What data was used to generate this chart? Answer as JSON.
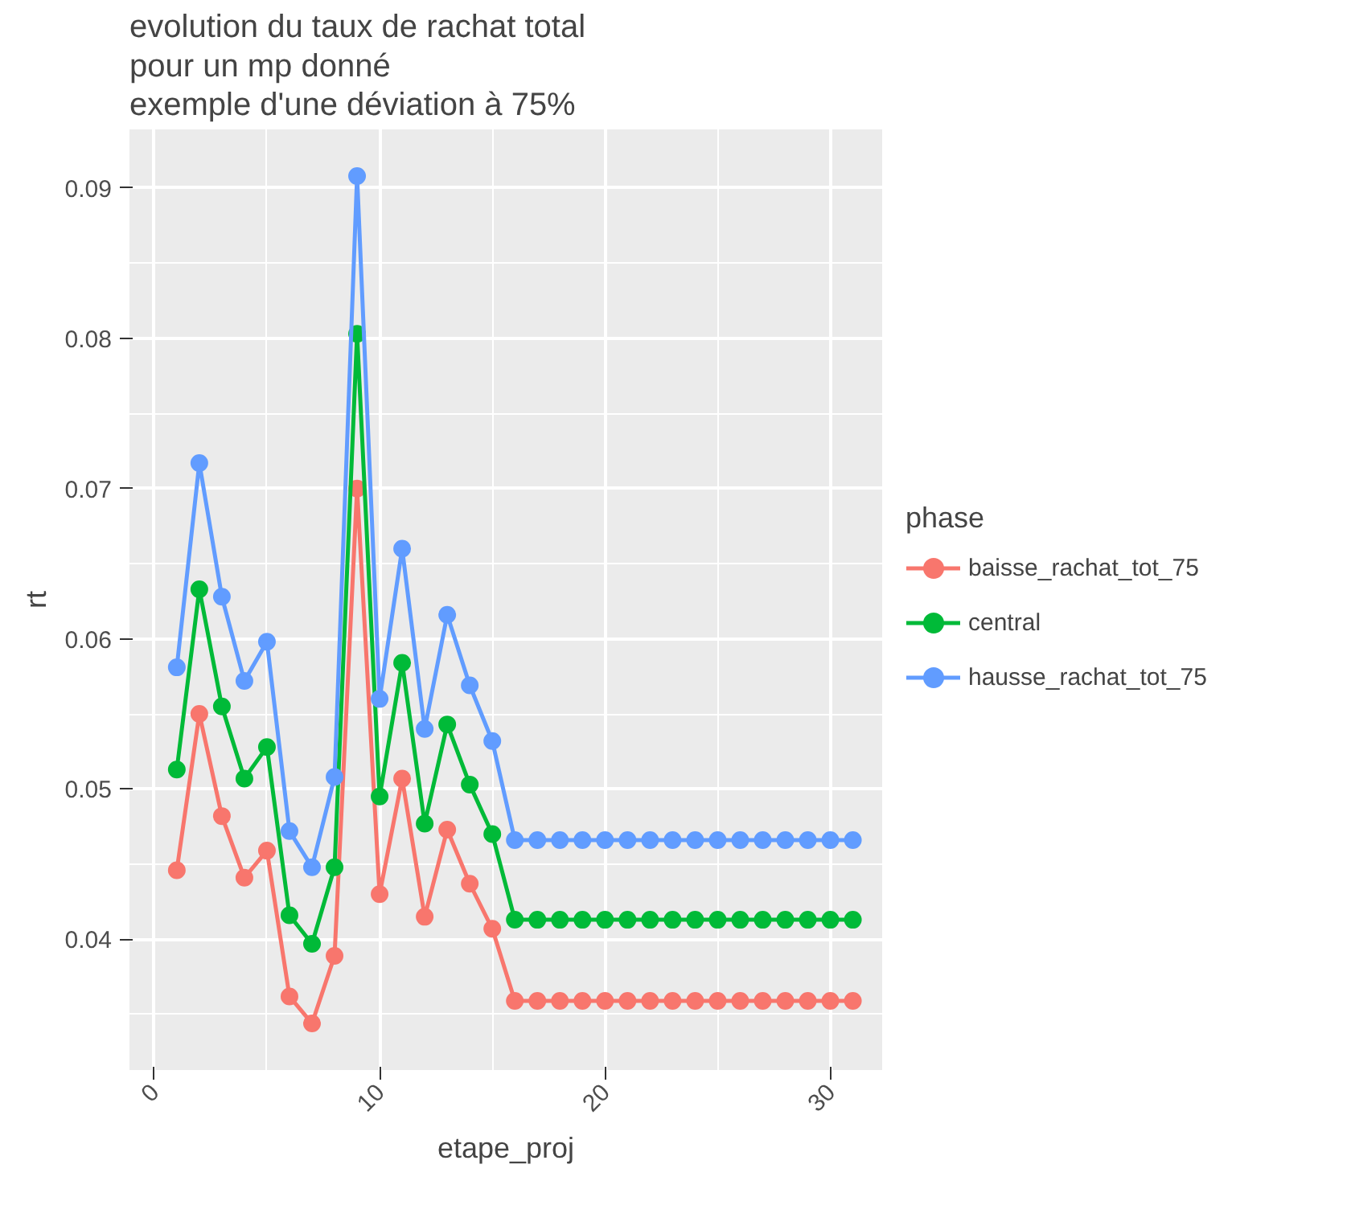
{
  "chart_data": {
    "type": "line",
    "title": "evolution du taux de rachat total\n pour un mp donné\n exemple d'une déviation à 75%",
    "xlabel": "etape_proj",
    "ylabel": "rt",
    "legend_title": "phase",
    "legend": "right",
    "grid": true,
    "marker": "circle",
    "line_style": "solid",
    "x": [
      1,
      2,
      3,
      4,
      5,
      6,
      7,
      8,
      9,
      10,
      11,
      12,
      13,
      14,
      15,
      16,
      17,
      18,
      19,
      20,
      21,
      22,
      23,
      24,
      25,
      26,
      27,
      28,
      29,
      30,
      31
    ],
    "xlim": [
      -1.1,
      32.3
    ],
    "ylim": [
      0.0313,
      0.0939
    ],
    "xticks": [
      0,
      10,
      20,
      30
    ],
    "yticks": [
      0.04,
      0.05,
      0.06,
      0.07,
      0.08,
      0.09
    ],
    "series": [
      {
        "name": "baisse_rachat_tot_75",
        "color": "#f8766d",
        "values": [
          0.0446,
          0.055,
          0.0482,
          0.0441,
          0.0459,
          0.0362,
          0.0344,
          0.0389,
          0.07,
          0.043,
          0.0507,
          0.0415,
          0.0473,
          0.0437,
          0.0407,
          0.0359,
          0.0359,
          0.0359,
          0.0359,
          0.0359,
          0.0359,
          0.0359,
          0.0359,
          0.0359,
          0.0359,
          0.0359,
          0.0359,
          0.0359,
          0.0359,
          0.0359,
          0.0359
        ]
      },
      {
        "name": "central",
        "color": "#00ba38",
        "values": [
          0.0513,
          0.0633,
          0.0555,
          0.0507,
          0.0528,
          0.0416,
          0.0397,
          0.0448,
          0.0803,
          0.0495,
          0.0584,
          0.0477,
          0.0543,
          0.0503,
          0.047,
          0.0413,
          0.0413,
          0.0413,
          0.0413,
          0.0413,
          0.0413,
          0.0413,
          0.0413,
          0.0413,
          0.0413,
          0.0413,
          0.0413,
          0.0413,
          0.0413,
          0.0413,
          0.0413
        ]
      },
      {
        "name": "hausse_rachat_tot_75",
        "color": "#619cff",
        "values": [
          0.0581,
          0.0717,
          0.0628,
          0.0572,
          0.0598,
          0.0472,
          0.0448,
          0.0508,
          0.0908,
          0.056,
          0.066,
          0.054,
          0.0616,
          0.0569,
          0.0532,
          0.0466,
          0.0466,
          0.0466,
          0.0466,
          0.0466,
          0.0466,
          0.0466,
          0.0466,
          0.0466,
          0.0466,
          0.0466,
          0.0466,
          0.0466,
          0.0466,
          0.0466,
          0.0466
        ]
      }
    ]
  }
}
